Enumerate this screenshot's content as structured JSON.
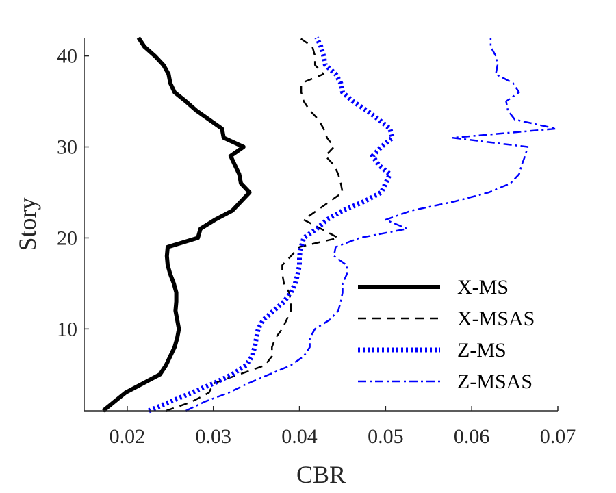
{
  "chart_data": {
    "type": "line",
    "title": "",
    "xlabel": "CBR",
    "ylabel": "Story",
    "xlim": [
      0.015,
      0.07
    ],
    "ylim": [
      1,
      42
    ],
    "xticks": [
      0.02,
      0.03,
      0.04,
      0.05,
      0.06,
      0.07
    ],
    "xtick_labels": [
      "0.02",
      "0.03",
      "0.04",
      "0.05",
      "0.06",
      "0.07"
    ],
    "yticks": [
      10,
      20,
      30,
      40
    ],
    "ytick_labels": [
      "10",
      "20",
      "30",
      "40"
    ],
    "grid": false,
    "legend_position": "lower-right",
    "series": [
      {
        "name": "X-MS",
        "color": "#000000",
        "style": "solid",
        "points": [
          [
            0.0172,
            1
          ],
          [
            0.0185,
            2
          ],
          [
            0.0198,
            3
          ],
          [
            0.0218,
            4
          ],
          [
            0.0238,
            5
          ],
          [
            0.0245,
            6
          ],
          [
            0.025,
            7
          ],
          [
            0.0255,
            8
          ],
          [
            0.0258,
            9
          ],
          [
            0.026,
            10
          ],
          [
            0.0258,
            11
          ],
          [
            0.0256,
            12
          ],
          [
            0.0257,
            13
          ],
          [
            0.0257,
            14
          ],
          [
            0.0254,
            15
          ],
          [
            0.025,
            16
          ],
          [
            0.0247,
            17
          ],
          [
            0.0246,
            18
          ],
          [
            0.0247,
            19
          ],
          [
            0.0282,
            20
          ],
          [
            0.0285,
            21
          ],
          [
            0.0302,
            22
          ],
          [
            0.0322,
            23
          ],
          [
            0.0332,
            24
          ],
          [
            0.0342,
            25
          ],
          [
            0.0332,
            26
          ],
          [
            0.033,
            27
          ],
          [
            0.0325,
            28
          ],
          [
            0.032,
            29
          ],
          [
            0.0335,
            30
          ],
          [
            0.0312,
            31
          ],
          [
            0.031,
            32
          ],
          [
            0.0295,
            33
          ],
          [
            0.028,
            34
          ],
          [
            0.0268,
            35
          ],
          [
            0.0255,
            36
          ],
          [
            0.025,
            37
          ],
          [
            0.0248,
            38
          ],
          [
            0.0242,
            39
          ],
          [
            0.0232,
            40
          ],
          [
            0.022,
            41
          ],
          [
            0.0213,
            42
          ]
        ]
      },
      {
        "name": "X-MSAS",
        "color": "#000000",
        "style": "dashed",
        "points": [
          [
            0.0245,
            1
          ],
          [
            0.0275,
            2
          ],
          [
            0.0295,
            3
          ],
          [
            0.03,
            4
          ],
          [
            0.033,
            5
          ],
          [
            0.036,
            6
          ],
          [
            0.0368,
            7
          ],
          [
            0.0368,
            8
          ],
          [
            0.0372,
            9
          ],
          [
            0.038,
            10
          ],
          [
            0.0385,
            11
          ],
          [
            0.039,
            12
          ],
          [
            0.039,
            13
          ],
          [
            0.0388,
            14
          ],
          [
            0.0382,
            15
          ],
          [
            0.038,
            16
          ],
          [
            0.038,
            17
          ],
          [
            0.039,
            18
          ],
          [
            0.04,
            19
          ],
          [
            0.0445,
            20
          ],
          [
            0.0425,
            21
          ],
          [
            0.0405,
            22
          ],
          [
            0.042,
            23
          ],
          [
            0.0435,
            24
          ],
          [
            0.045,
            25
          ],
          [
            0.0448,
            26
          ],
          [
            0.0445,
            27
          ],
          [
            0.044,
            28
          ],
          [
            0.043,
            29
          ],
          [
            0.044,
            30
          ],
          [
            0.0432,
            31
          ],
          [
            0.0428,
            32
          ],
          [
            0.0422,
            33
          ],
          [
            0.0412,
            34
          ],
          [
            0.0405,
            35
          ],
          [
            0.0402,
            36
          ],
          [
            0.0402,
            37
          ],
          [
            0.0428,
            38
          ],
          [
            0.0418,
            39
          ],
          [
            0.0418,
            40
          ],
          [
            0.0415,
            41
          ],
          [
            0.04,
            42
          ]
        ]
      },
      {
        "name": "Z-MS",
        "color": "#0000ff",
        "style": "dotted",
        "points": [
          [
            0.0225,
            1
          ],
          [
            0.025,
            2
          ],
          [
            0.0275,
            3
          ],
          [
            0.03,
            4
          ],
          [
            0.0322,
            5
          ],
          [
            0.0338,
            6
          ],
          [
            0.0345,
            7
          ],
          [
            0.0348,
            8
          ],
          [
            0.035,
            9
          ],
          [
            0.0352,
            10
          ],
          [
            0.0358,
            11
          ],
          [
            0.037,
            12
          ],
          [
            0.0382,
            13
          ],
          [
            0.039,
            14
          ],
          [
            0.0395,
            15
          ],
          [
            0.0398,
            16
          ],
          [
            0.04,
            17
          ],
          [
            0.04,
            18
          ],
          [
            0.0402,
            19
          ],
          [
            0.0405,
            20
          ],
          [
            0.042,
            21
          ],
          [
            0.0432,
            22
          ],
          [
            0.045,
            23
          ],
          [
            0.0475,
            24
          ],
          [
            0.0495,
            25
          ],
          [
            0.05,
            26
          ],
          [
            0.0505,
            27
          ],
          [
            0.0492,
            28
          ],
          [
            0.0485,
            29
          ],
          [
            0.0495,
            30
          ],
          [
            0.0508,
            31
          ],
          [
            0.0505,
            32
          ],
          [
            0.0492,
            33
          ],
          [
            0.0478,
            34
          ],
          [
            0.0462,
            35
          ],
          [
            0.045,
            36
          ],
          [
            0.0448,
            37
          ],
          [
            0.0442,
            38
          ],
          [
            0.043,
            39
          ],
          [
            0.0428,
            40
          ],
          [
            0.0425,
            41
          ],
          [
            0.042,
            42
          ]
        ]
      },
      {
        "name": "Z-MSAS",
        "color": "#0000ff",
        "style": "dashdot",
        "points": [
          [
            0.0268,
            1
          ],
          [
            0.029,
            2
          ],
          [
            0.0318,
            3
          ],
          [
            0.034,
            4
          ],
          [
            0.0365,
            5
          ],
          [
            0.039,
            6
          ],
          [
            0.0405,
            7
          ],
          [
            0.0412,
            8
          ],
          [
            0.0412,
            9
          ],
          [
            0.0418,
            10
          ],
          [
            0.0435,
            11
          ],
          [
            0.0445,
            12
          ],
          [
            0.0448,
            13
          ],
          [
            0.045,
            14
          ],
          [
            0.045,
            15
          ],
          [
            0.0455,
            16
          ],
          [
            0.0455,
            17
          ],
          [
            0.044,
            18
          ],
          [
            0.0442,
            19
          ],
          [
            0.047,
            20
          ],
          [
            0.0525,
            21
          ],
          [
            0.05,
            22
          ],
          [
            0.053,
            23
          ],
          [
            0.058,
            24
          ],
          [
            0.062,
            25
          ],
          [
            0.0645,
            26
          ],
          [
            0.0655,
            27
          ],
          [
            0.0658,
            28
          ],
          [
            0.0662,
            29
          ],
          [
            0.0665,
            30
          ],
          [
            0.0578,
            31
          ],
          [
            0.0698,
            32
          ],
          [
            0.065,
            33
          ],
          [
            0.0642,
            34
          ],
          [
            0.064,
            35
          ],
          [
            0.0655,
            36
          ],
          [
            0.0648,
            37
          ],
          [
            0.0628,
            38
          ],
          [
            0.063,
            39
          ],
          [
            0.0628,
            40
          ],
          [
            0.0622,
            41
          ],
          [
            0.0622,
            42
          ]
        ]
      }
    ]
  }
}
